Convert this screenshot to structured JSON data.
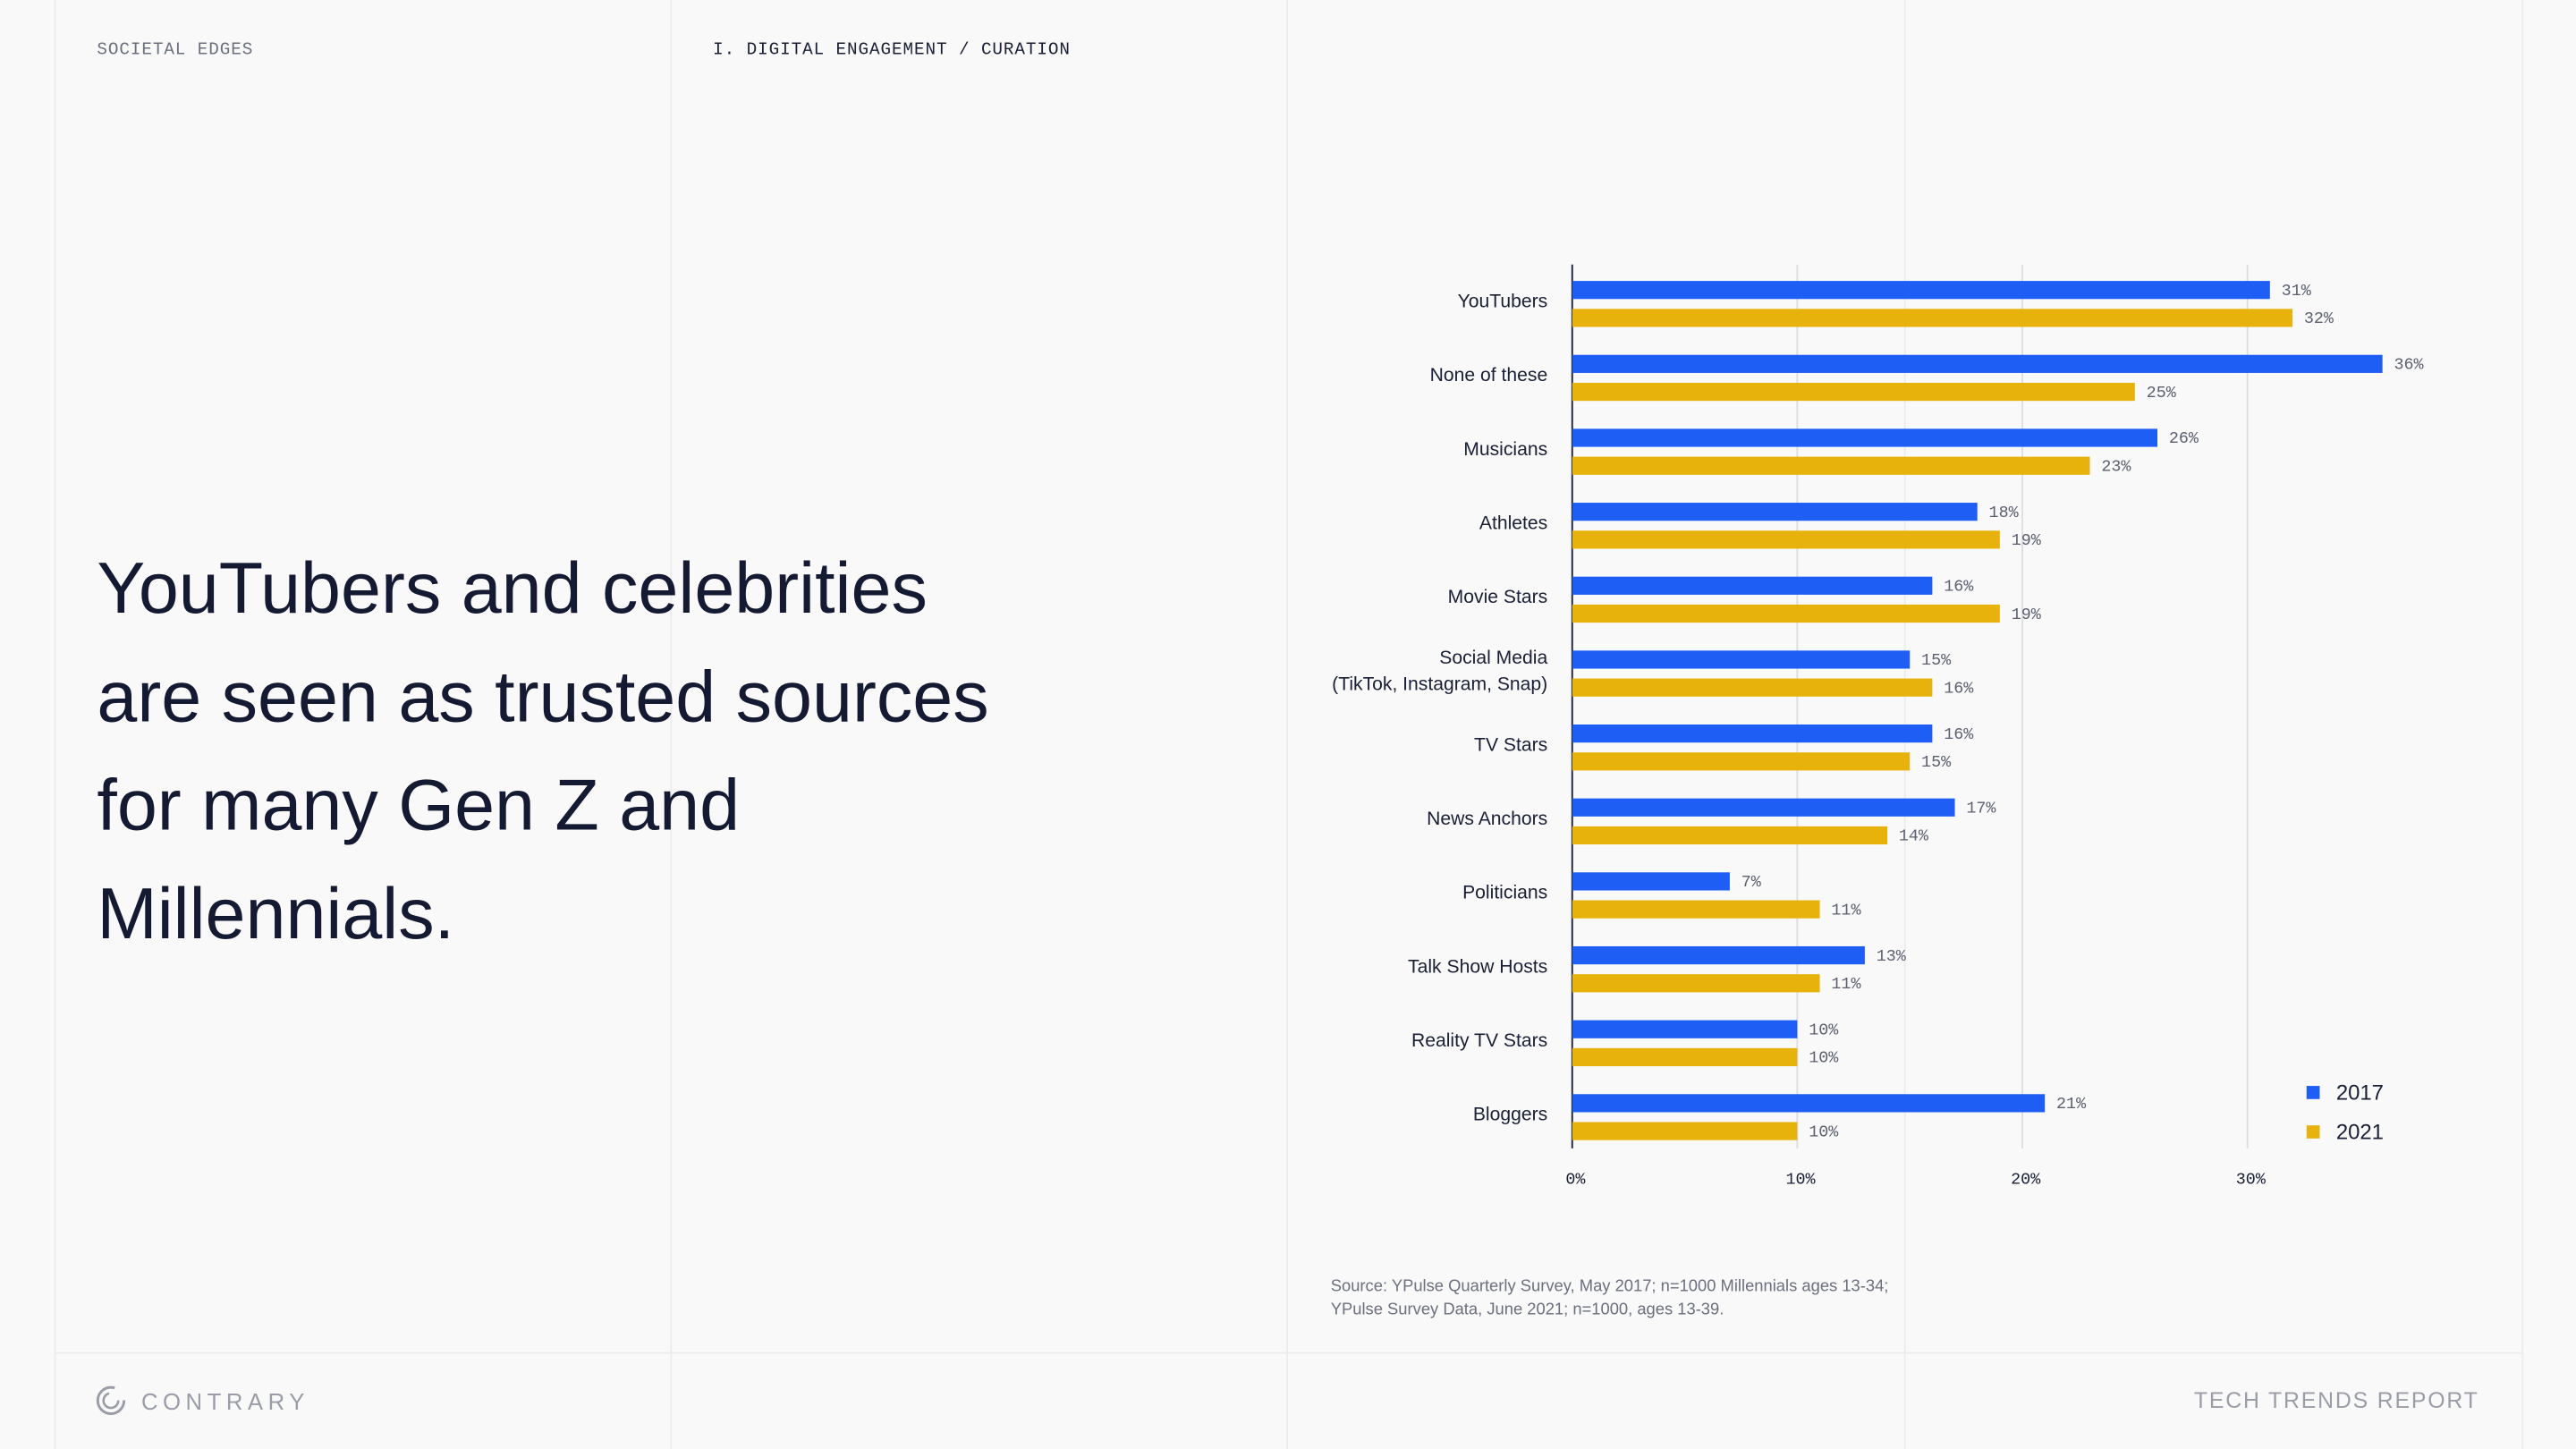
{
  "header": {
    "section": "SOCIETAL EDGES",
    "chapter": "I. DIGITAL ENGAGEMENT / CURATION"
  },
  "headline": "YouTubers and celebrities are seen as trusted sources for many Gen Z and Millennials.",
  "chart_data": {
    "type": "bar",
    "orientation": "horizontal",
    "categories": [
      "YouTubers",
      "None of these",
      "Musicians",
      "Athletes",
      "Movie Stars",
      "Social Media\n(TikTok, Instagram, Snap)",
      "TV Stars",
      "News Anchors",
      "Politicians",
      "Talk Show Hosts",
      "Reality TV Stars",
      "Bloggers"
    ],
    "series": [
      {
        "name": "2017",
        "color": "#1f5ef5",
        "values": [
          31,
          36,
          26,
          18,
          16,
          15,
          16,
          17,
          7,
          13,
          10,
          21
        ],
        "value_labels": [
          "31%",
          "36%",
          "26%",
          "18%",
          "16%",
          "15%",
          "16%",
          "17%",
          "7%",
          "13%",
          "10%",
          "21%"
        ]
      },
      {
        "name": "2021",
        "color": "#e8b20c",
        "values": [
          32,
          25,
          23,
          19,
          19,
          16,
          15,
          14,
          11,
          11,
          10,
          10
        ],
        "value_labels": [
          "32%",
          "25%",
          "23%",
          "19%",
          "19%",
          "16%",
          "15%",
          "14%",
          "11%",
          "11%",
          "10%",
          "10%"
        ]
      }
    ],
    "xlim": [
      0,
      40
    ],
    "xticks": [
      {
        "value": 0,
        "label": "0%"
      },
      {
        "value": 10,
        "label": "10%"
      },
      {
        "value": 20,
        "label": "20%"
      },
      {
        "value": 30,
        "label": "30%"
      }
    ],
    "grid": true,
    "legend": "bottom-right"
  },
  "source": [
    "Source: YPulse Quarterly Survey, May 2017; n=1000 Millennials ages 13-34;",
    "YPulse Survey Data, June 2021; n=1000, ages 13-39."
  ],
  "footer": {
    "brand": "CONTRARY",
    "report": "TECH TRENDS REPORT"
  }
}
